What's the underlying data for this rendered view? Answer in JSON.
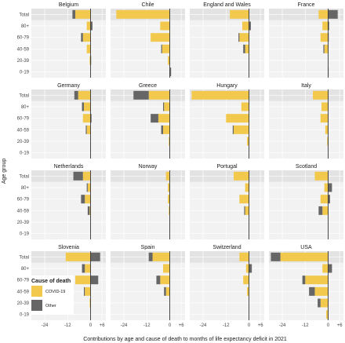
{
  "chart_data": {
    "type": "bar",
    "orientation": "horizontal",
    "stacked": true,
    "xlabel": "Contributions by age and cause of death to months of life expectancy deficit in 2021",
    "ylabel": "Age group",
    "x_ticks": [
      -24,
      -12,
      0,
      6
    ],
    "x_tick_labels": [
      "-24",
      "-12",
      "0",
      "+6"
    ],
    "xlim": [
      -31,
      8
    ],
    "age_groups": [
      "Total",
      "80+",
      "60-79",
      "40-59",
      "20-39",
      "0-19"
    ],
    "series_names": [
      "COVID-19",
      "Other"
    ],
    "colors": {
      "covid": "#F2C94C",
      "other": "#666666",
      "zero_line": "#333333"
    },
    "legend": {
      "title": "Cause of death",
      "entries": [
        "COVID-19",
        "Other"
      ]
    },
    "grid": true,
    "panels": [
      {
        "name": "Belgium",
        "covid": [
          -8,
          -2,
          -4,
          -2,
          -0.5,
          0
        ],
        "other": [
          -1.5,
          1,
          -1,
          0,
          0.3,
          0
        ]
      },
      {
        "name": "Chile",
        "covid": [
          -28,
          -5,
          -10,
          -4,
          -1,
          0
        ],
        "other": [
          0,
          0,
          0,
          -0.5,
          0,
          0.7
        ]
      },
      {
        "name": "England and Wales",
        "covid": [
          -10,
          -3.5,
          -5,
          -2,
          0,
          0
        ],
        "other": [
          0,
          1,
          -0.5,
          -1,
          0,
          0
        ]
      },
      {
        "name": "France",
        "covid": [
          -5,
          -3,
          -4,
          -2,
          0,
          0
        ],
        "other": [
          5,
          0.5,
          0.3,
          -0.5,
          0,
          0.2
        ]
      },
      {
        "name": "Germany",
        "covid": [
          -6.5,
          -3.5,
          -4,
          -2,
          0,
          0
        ],
        "other": [
          -2,
          -1,
          0.5,
          -0.5,
          0,
          0
        ]
      },
      {
        "name": "Greece",
        "covid": [
          -11,
          -3,
          -6,
          -3.5,
          -0.5,
          0
        ],
        "other": [
          -8,
          -0.5,
          -4,
          -1,
          0,
          0
        ]
      },
      {
        "name": "Hungary",
        "covid": [
          -30,
          -4,
          -12,
          -8,
          -1,
          0
        ],
        "other": [
          0,
          0,
          0,
          -0.5,
          0,
          0
        ]
      },
      {
        "name": "Italy",
        "covid": [
          -8,
          -3.5,
          -4,
          -1.5,
          -0.5,
          0
        ],
        "other": [
          0,
          0,
          0,
          0,
          0,
          0
        ]
      },
      {
        "name": "Netherlands",
        "covid": [
          -4,
          -1.5,
          -3,
          -0.5,
          0,
          0
        ],
        "other": [
          -5,
          -0.5,
          -2,
          -1,
          0,
          0
        ]
      },
      {
        "name": "Norway",
        "covid": [
          -2,
          -1,
          -1,
          -0.5,
          0,
          0
        ],
        "other": [
          0,
          0,
          0,
          0,
          0,
          0
        ]
      },
      {
        "name": "Portugal",
        "covid": [
          -8,
          -2,
          -5,
          -2,
          0,
          0
        ],
        "other": [
          0,
          0,
          0,
          -0.5,
          0,
          0
        ]
      },
      {
        "name": "Scotland",
        "covid": [
          -7,
          -2,
          -4,
          -3,
          0,
          0
        ],
        "other": [
          0,
          2,
          1,
          -2,
          0,
          0
        ]
      },
      {
        "name": "Slovenia",
        "covid": [
          -13,
          -3,
          -8,
          -3,
          -0.5,
          0
        ],
        "other": [
          5,
          -1.5,
          4,
          -0.5,
          0,
          0
        ]
      },
      {
        "name": "Spain",
        "covid": [
          -9,
          -3.5,
          -5,
          -2,
          0,
          0
        ],
        "other": [
          -2,
          0,
          -2,
          -1,
          0,
          0
        ]
      },
      {
        "name": "Switzerland",
        "covid": [
          -5,
          -1.5,
          -3,
          -1,
          0,
          0
        ],
        "other": [
          0,
          1.5,
          0,
          0,
          0,
          0
        ]
      },
      {
        "name": "USA",
        "covid": [
          -25,
          -3,
          -12,
          -7,
          -4,
          -1
        ],
        "other": [
          -5,
          2,
          -1.5,
          -3,
          -1.5,
          0
        ]
      }
    ]
  }
}
